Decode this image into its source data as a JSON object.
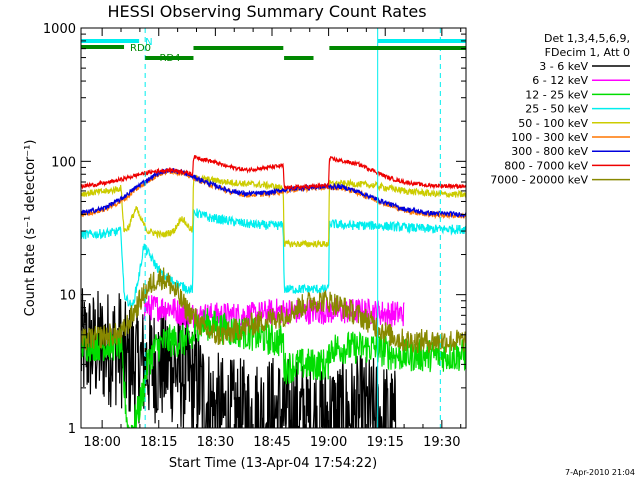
{
  "chart_data": {
    "type": "line",
    "title": "HESSI Observing Summary Count Rates",
    "xlabel": "Start Time (13-Apr-04 17:54:22)",
    "ylabel": "Count Rate (s⁻¹ detector⁻¹)",
    "y_scale": "log",
    "ylim": [
      1,
      1000
    ],
    "xlim_minutes": [
      -5.6,
      96.4
    ],
    "x_ticks": [
      {
        "label": "18:00",
        "value": 0
      },
      {
        "label": "18:15",
        "value": 15
      },
      {
        "label": "18:30",
        "value": 30
      },
      {
        "label": "18:45",
        "value": 45
      },
      {
        "label": "19:00",
        "value": 60
      },
      {
        "label": "19:15",
        "value": 75
      },
      {
        "label": "19:30",
        "value": 90
      }
    ],
    "y_ticks": [
      {
        "label": "1",
        "value": 1
      },
      {
        "label": "10",
        "value": 10
      },
      {
        "label": "100",
        "value": 100
      },
      {
        "label": "1000",
        "value": 1000
      }
    ],
    "legend_position": "right",
    "legend_header": [
      "Det 1,3,4,5,6,9,",
      "FDecim 1, Att 0"
    ],
    "footer_date": "7-Apr-2010 21:04",
    "series": [
      {
        "name": "3 - 6 keV",
        "color": "#000000",
        "noise": 0.9,
        "points": [
          [
            -5.6,
            4
          ],
          [
            2,
            4
          ],
          [
            5,
            4
          ],
          [
            5.8,
            3.2
          ],
          [
            10,
            3
          ],
          [
            14,
            3
          ],
          [
            18,
            3
          ],
          [
            22,
            2.5
          ],
          [
            26,
            2
          ],
          [
            28,
            1.5
          ],
          [
            33,
            1.2
          ],
          [
            40,
            1.2
          ],
          [
            46,
            1.3
          ],
          [
            52,
            1.2
          ],
          [
            58,
            1.2
          ],
          [
            64,
            1.2
          ],
          [
            70,
            1.3
          ],
          [
            76,
            1.1
          ],
          [
            78,
            1
          ]
        ]
      },
      {
        "name": "6 - 12 keV",
        "color": "#ff00ff",
        "noise": 0.2,
        "points": [
          [
            11,
            8
          ],
          [
            14,
            8
          ],
          [
            18,
            8
          ],
          [
            22,
            7
          ],
          [
            27,
            7
          ],
          [
            33,
            7
          ],
          [
            40,
            7
          ],
          [
            46,
            7.5
          ],
          [
            52,
            7.5
          ],
          [
            58,
            7.5
          ],
          [
            62,
            7.5
          ],
          [
            66,
            7.5
          ],
          [
            70,
            7.5
          ],
          [
            76,
            7.2
          ],
          [
            80,
            7.2
          ]
        ]
      },
      {
        "name": "12 - 25 keV",
        "color": "#00dd00",
        "noise": 0.25,
        "points": [
          [
            -5.6,
            4.2
          ],
          [
            5,
            4.2
          ],
          [
            5.8,
            2
          ],
          [
            7,
            0.9
          ],
          [
            8,
            1
          ],
          [
            9,
            1.2
          ],
          [
            10,
            1.5
          ],
          [
            11,
            2
          ],
          [
            12,
            3
          ],
          [
            14,
            4
          ],
          [
            17,
            4.5
          ],
          [
            20,
            4.5
          ],
          [
            24,
            4.5
          ],
          [
            25,
            6
          ],
          [
            28,
            6
          ],
          [
            33,
            5.5
          ],
          [
            40,
            5
          ],
          [
            46,
            4.5
          ],
          [
            48,
            4.5
          ],
          [
            48.2,
            2.8
          ],
          [
            52,
            3
          ],
          [
            58,
            3
          ],
          [
            60,
            3
          ],
          [
            60.2,
            4
          ],
          [
            66,
            4
          ],
          [
            72,
            4
          ],
          [
            78,
            3.5
          ],
          [
            84,
            3.5
          ],
          [
            90,
            3.5
          ],
          [
            96.4,
            3.5
          ]
        ]
      },
      {
        "name": "25 - 50 keV",
        "color": "#00eeee",
        "noise": 0.07,
        "points": [
          [
            -5.6,
            28
          ],
          [
            2,
            29
          ],
          [
            5,
            30
          ],
          [
            5.8,
            10
          ],
          [
            8,
            8
          ],
          [
            10,
            15
          ],
          [
            11,
            23
          ],
          [
            12,
            21
          ],
          [
            13,
            19
          ],
          [
            14,
            17
          ],
          [
            16,
            14
          ],
          [
            18,
            13
          ],
          [
            20,
            12
          ],
          [
            23,
            11
          ],
          [
            24,
            11
          ],
          [
            24.2,
            42
          ],
          [
            28,
            38
          ],
          [
            33,
            36
          ],
          [
            38,
            34
          ],
          [
            44,
            33
          ],
          [
            48,
            33
          ],
          [
            48.2,
            11
          ],
          [
            52,
            11
          ],
          [
            56,
            11
          ],
          [
            60,
            11
          ],
          [
            60.2,
            34
          ],
          [
            66,
            33
          ],
          [
            72,
            33
          ],
          [
            80,
            32
          ],
          [
            88,
            31
          ],
          [
            96.4,
            31
          ]
        ]
      },
      {
        "name": "50 - 100 keV",
        "color": "#cccc00",
        "noise": 0.05,
        "points": [
          [
            -5.6,
            57
          ],
          [
            2,
            60
          ],
          [
            5,
            63
          ],
          [
            5.8,
            30
          ],
          [
            7,
            32
          ],
          [
            9,
            45
          ],
          [
            10,
            38
          ],
          [
            12,
            30
          ],
          [
            16,
            28
          ],
          [
            19,
            30
          ],
          [
            21,
            38
          ],
          [
            23,
            32
          ],
          [
            24,
            30
          ],
          [
            24.2,
            75
          ],
          [
            28,
            73
          ],
          [
            33,
            70
          ],
          [
            38,
            68
          ],
          [
            44,
            66
          ],
          [
            48,
            63
          ],
          [
            48.2,
            24
          ],
          [
            52,
            24
          ],
          [
            56,
            24
          ],
          [
            60,
            24
          ],
          [
            60.2,
            68
          ],
          [
            66,
            68
          ],
          [
            72,
            66
          ],
          [
            80,
            60
          ],
          [
            88,
            57
          ],
          [
            96.4,
            56
          ]
        ]
      },
      {
        "name": "100 - 300 keV",
        "color": "#ff7700",
        "noise": 0.04,
        "points": [
          [
            -5.6,
            40
          ],
          [
            0,
            43
          ],
          [
            5,
            50
          ],
          [
            10,
            65
          ],
          [
            15,
            80
          ],
          [
            18,
            85
          ],
          [
            21,
            82
          ],
          [
            24,
            76
          ],
          [
            28,
            68
          ],
          [
            33,
            60
          ],
          [
            38,
            56
          ],
          [
            44,
            57
          ],
          [
            48,
            60
          ],
          [
            52,
            62
          ],
          [
            56,
            63
          ],
          [
            60,
            64
          ],
          [
            64,
            63
          ],
          [
            68,
            58
          ],
          [
            72,
            52
          ],
          [
            76,
            47
          ],
          [
            80,
            43
          ],
          [
            86,
            40
          ],
          [
            96.4,
            39
          ]
        ]
      },
      {
        "name": "300 - 800 keV",
        "color": "#0000dd",
        "noise": 0.035,
        "points": [
          [
            -5.6,
            41
          ],
          [
            0,
            44
          ],
          [
            5,
            52
          ],
          [
            10,
            67
          ],
          [
            15,
            82
          ],
          [
            18,
            86
          ],
          [
            21,
            83
          ],
          [
            24,
            77
          ],
          [
            28,
            69
          ],
          [
            33,
            61
          ],
          [
            38,
            57
          ],
          [
            44,
            58
          ],
          [
            48,
            61
          ],
          [
            52,
            63
          ],
          [
            56,
            64
          ],
          [
            60,
            65
          ],
          [
            64,
            64
          ],
          [
            68,
            59
          ],
          [
            72,
            53
          ],
          [
            76,
            48
          ],
          [
            80,
            44
          ],
          [
            86,
            41
          ],
          [
            96.4,
            40
          ]
        ]
      },
      {
        "name": "800 - 7000 keV",
        "color": "#ee0000",
        "noise": 0.03,
        "points": [
          [
            -5.6,
            65
          ],
          [
            0,
            68
          ],
          [
            5,
            73
          ],
          [
            10,
            80
          ],
          [
            15,
            85
          ],
          [
            18,
            86
          ],
          [
            21,
            84
          ],
          [
            24,
            80
          ],
          [
            24.2,
            108
          ],
          [
            28,
            102
          ],
          [
            33,
            92
          ],
          [
            38,
            86
          ],
          [
            44,
            90
          ],
          [
            48,
            93
          ],
          [
            48.2,
            63
          ],
          [
            52,
            64
          ],
          [
            56,
            65
          ],
          [
            60,
            66
          ],
          [
            60.2,
            105
          ],
          [
            64,
            100
          ],
          [
            68,
            95
          ],
          [
            72,
            85
          ],
          [
            76,
            75
          ],
          [
            80,
            70
          ],
          [
            86,
            66
          ],
          [
            96.4,
            65
          ]
        ]
      },
      {
        "name": "7000 - 20000 keV",
        "color": "#888800",
        "noise": 0.18,
        "points": [
          [
            -5.6,
            4.5
          ],
          [
            2,
            5
          ],
          [
            5,
            5
          ],
          [
            6,
            5.5
          ],
          [
            8,
            7
          ],
          [
            10,
            9
          ],
          [
            12,
            11
          ],
          [
            14,
            13
          ],
          [
            16,
            13.5
          ],
          [
            18,
            12
          ],
          [
            20,
            10
          ],
          [
            22,
            8
          ],
          [
            24,
            7
          ],
          [
            27,
            5.5
          ],
          [
            30,
            5
          ],
          [
            33,
            5
          ],
          [
            36,
            5.5
          ],
          [
            40,
            6
          ],
          [
            44,
            6.5
          ],
          [
            48,
            7
          ],
          [
            52,
            8
          ],
          [
            56,
            9
          ],
          [
            60,
            9
          ],
          [
            64,
            8
          ],
          [
            68,
            7
          ],
          [
            72,
            6
          ],
          [
            76,
            5
          ],
          [
            80,
            4.5
          ],
          [
            86,
            4.5
          ],
          [
            96.4,
            4.5
          ]
        ]
      }
    ],
    "state_bars": [
      {
        "label": "N",
        "color": "#00eeee",
        "segments": [
          [
            -5.6,
            9.8
          ],
          [
            73,
            96.4
          ]
        ]
      },
      {
        "label": "RD0",
        "color": "#008800",
        "segments": [
          [
            -5.6,
            5.8
          ]
        ]
      },
      {
        "label": "",
        "color": "#008800",
        "segments": [
          [
            24.2,
            48
          ],
          [
            60.2,
            96.4
          ]
        ]
      },
      {
        "label": "RD4",
        "color": "#008800",
        "segments": [
          [
            11.4,
            24.2
          ],
          [
            48.2,
            56
          ]
        ]
      }
    ],
    "vlines_solid": [
      -5.6,
      73
    ],
    "vlines_dashed": [
      11.4,
      89.6
    ]
  }
}
